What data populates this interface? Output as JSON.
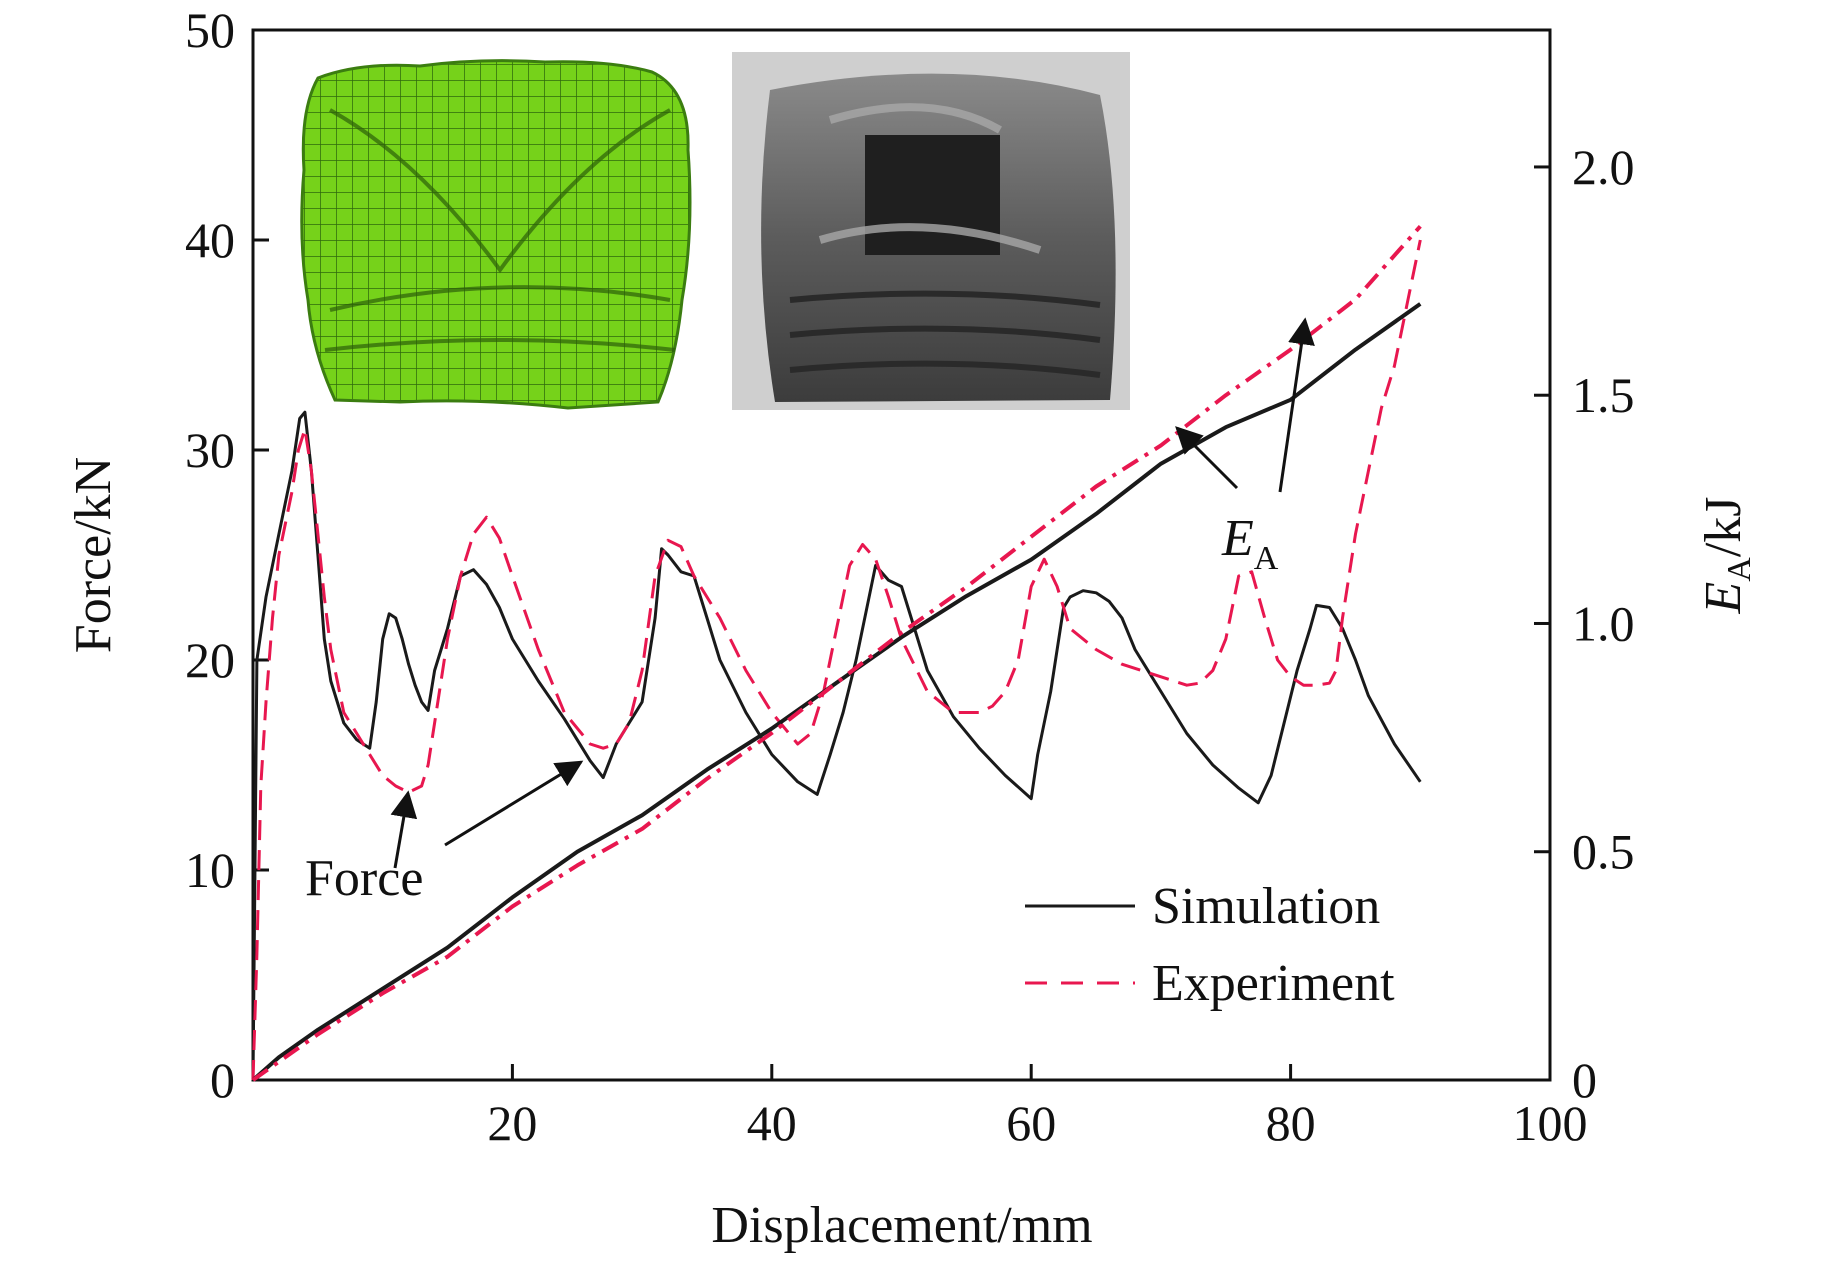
{
  "chart_data": {
    "type": "line",
    "xlabel": "Displacement/mm",
    "ylabel": "Force/kN",
    "y2label_main": "E",
    "y2label_sub": "A",
    "y2label_unit": "/kJ",
    "xlim": [
      0,
      100
    ],
    "ylim": [
      0,
      50
    ],
    "y2lim": [
      0,
      2.3
    ],
    "x_ticks": [
      "20",
      "40",
      "60",
      "80",
      "100"
    ],
    "y_ticks": [
      "0",
      "10",
      "20",
      "30",
      "40",
      "50"
    ],
    "y2_ticks": [
      "0",
      "0.5",
      "1.0",
      "1.5",
      "2.0"
    ],
    "grid": false,
    "legend_position": "bottom-right",
    "legend": [
      "Simulation",
      "Experiment"
    ],
    "annotations": {
      "force": "Force",
      "ea_main": "E",
      "ea_sub": "A"
    },
    "insets": [
      "finite-element-mesh-model",
      "crushed-specimen-photo"
    ],
    "colors": {
      "simulation": "#1a1a1a",
      "experiment": "#e8174f"
    },
    "series": [
      {
        "name": "Simulation",
        "quantity": "Force",
        "axis": "left",
        "x": [
          0,
          0.3,
          1,
          2,
          3,
          3.6,
          4,
          4.5,
          5,
          5.5,
          6,
          7,
          8,
          9,
          9.5,
          10,
          10.5,
          11,
          11.5,
          12,
          12.5,
          13,
          13.5,
          14,
          14.5,
          15,
          16,
          17,
          18,
          19,
          20,
          22,
          24,
          26,
          27,
          28,
          29,
          30,
          31,
          31.5,
          32,
          33,
          34,
          35,
          36,
          38,
          40,
          42,
          43.5,
          44.5,
          45.5,
          46.5,
          47.5,
          48,
          49,
          50,
          51,
          52,
          54,
          56,
          58,
          60,
          60.5,
          61.5,
          62.5,
          63,
          64,
          65,
          66,
          67,
          68,
          70,
          72,
          74,
          76,
          77.5,
          78.5,
          79.5,
          80.5,
          81.5,
          82,
          83,
          84,
          85,
          86,
          88,
          90
        ],
        "y": [
          0,
          20,
          23,
          26,
          29,
          31.5,
          31.8,
          29,
          25,
          21,
          19,
          17,
          16.2,
          15.8,
          18,
          21,
          22.2,
          22,
          21,
          19.8,
          18.8,
          18,
          17.6,
          19.5,
          20.5,
          21.5,
          24,
          24.3,
          23.6,
          22.5,
          21,
          19,
          17.2,
          15.2,
          14.4,
          16,
          17,
          18,
          22,
          25.3,
          25,
          24.2,
          24,
          22,
          20,
          17.5,
          15.5,
          14.2,
          13.6,
          15.5,
          17.5,
          20,
          23,
          24.5,
          23.8,
          23.5,
          21.5,
          19.5,
          17.3,
          15.8,
          14.5,
          13.4,
          15.5,
          18.5,
          22.5,
          23,
          23.3,
          23.2,
          22.8,
          22,
          20.5,
          18.5,
          16.5,
          15,
          13.9,
          13.2,
          14.5,
          17,
          19.5,
          21.5,
          22.6,
          22.5,
          21.5,
          20,
          18.3,
          16,
          14.2
        ]
      },
      {
        "name": "Experiment",
        "quantity": "Force",
        "axis": "left",
        "x": [
          0,
          0.3,
          0.6,
          1,
          1.5,
          2,
          3,
          3.5,
          4,
          4.5,
          5,
          5.5,
          6,
          7,
          8,
          9,
          10,
          11,
          12,
          13,
          13.5,
          14,
          15,
          16,
          17,
          18,
          19,
          20,
          22,
          24,
          26,
          27,
          28,
          29,
          30,
          31,
          32,
          33,
          34,
          36,
          38,
          40,
          42,
          43,
          44,
          45,
          46,
          47,
          48,
          49,
          50,
          52,
          54,
          56,
          57,
          58,
          59,
          60,
          61,
          62,
          63,
          65,
          67,
          69,
          71,
          72,
          73,
          74,
          75,
          76,
          77,
          78,
          79,
          80,
          81,
          82,
          83,
          83.5,
          84,
          85,
          86,
          87,
          88,
          89,
          90
        ],
        "y": [
          0,
          6,
          14,
          18,
          22,
          25,
          28,
          30,
          31,
          29,
          26,
          23,
          20.5,
          17.5,
          16.5,
          15.5,
          14.5,
          14,
          13.7,
          14,
          15,
          17,
          21,
          24,
          26,
          26.8,
          25.8,
          24,
          20.5,
          17.5,
          16,
          15.8,
          16,
          17,
          19.5,
          24,
          25.7,
          25.4,
          24,
          22,
          19.5,
          17.5,
          16,
          16.5,
          18.5,
          21.5,
          24.5,
          25.5,
          24.8,
          23,
          21,
          18.5,
          17.5,
          17.5,
          17.8,
          18.5,
          20,
          23.5,
          24.8,
          23.5,
          21.5,
          20.5,
          19.8,
          19.4,
          19,
          18.8,
          18.9,
          19.5,
          21,
          24,
          24.2,
          22,
          20,
          19.2,
          18.8,
          18.8,
          18.9,
          19.5,
          22,
          26,
          29,
          32,
          34,
          37,
          40
        ]
      },
      {
        "name": "Simulation",
        "quantity": "EA",
        "axis": "right",
        "x": [
          0,
          2,
          5,
          10,
          15,
          20,
          25,
          30,
          35,
          40,
          45,
          50,
          55,
          60,
          65,
          70,
          75,
          80,
          85,
          90
        ],
        "y": [
          0,
          0.05,
          0.11,
          0.2,
          0.29,
          0.4,
          0.5,
          0.58,
          0.68,
          0.77,
          0.87,
          0.97,
          1.06,
          1.14,
          1.24,
          1.35,
          1.43,
          1.49,
          1.6,
          1.7
        ]
      },
      {
        "name": "Experiment",
        "quantity": "EA",
        "axis": "right",
        "x": [
          0,
          2,
          5,
          10,
          15,
          20,
          25,
          30,
          35,
          40,
          45,
          50,
          55,
          60,
          65,
          70,
          75,
          80,
          85,
          90
        ],
        "y": [
          0,
          0.04,
          0.1,
          0.19,
          0.27,
          0.38,
          0.47,
          0.55,
          0.66,
          0.76,
          0.87,
          0.98,
          1.08,
          1.19,
          1.3,
          1.39,
          1.5,
          1.6,
          1.71,
          1.87
        ]
      }
    ]
  }
}
